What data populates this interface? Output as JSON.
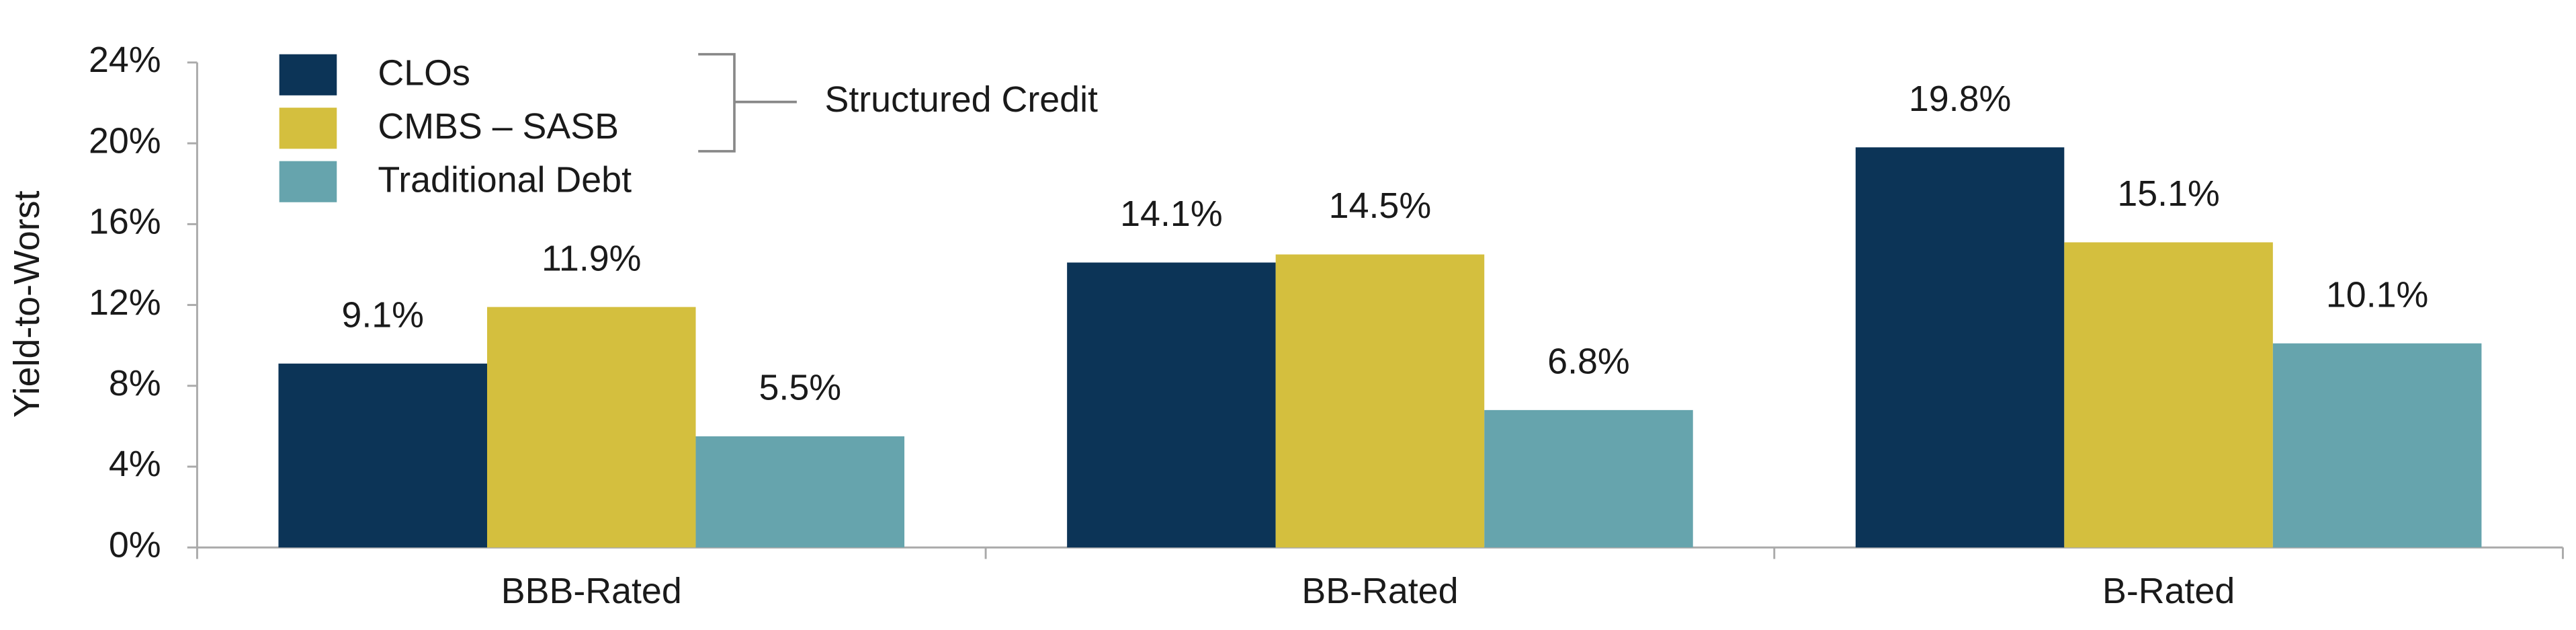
{
  "chart_data": {
    "type": "bar",
    "y_label": "Yield-to-Worst",
    "annotation": "Structured Credit",
    "categories": [
      "BBB-Rated",
      "BB-Rated",
      "B-Rated"
    ],
    "series": [
      {
        "name": "CLOs",
        "color": "#0c3457",
        "values": [
          9.1,
          14.1,
          19.8
        ],
        "value_labels": [
          "9.1%",
          "14.1%",
          "19.8%"
        ]
      },
      {
        "name": "CMBS – SASB",
        "color": "#d4bf3e",
        "values": [
          11.9,
          14.5,
          15.1
        ],
        "value_labels": [
          "11.9%",
          "14.5%",
          "15.1%"
        ]
      },
      {
        "name": "Traditional Debt",
        "color": "#66a4ad",
        "values": [
          5.5,
          6.8,
          10.1
        ],
        "value_labels": [
          "5.5%",
          "6.8%",
          "10.1%"
        ]
      }
    ],
    "ylim": [
      0,
      24
    ],
    "yticks": [
      {
        "value": 0,
        "label": "0%"
      },
      {
        "value": 4,
        "label": "4%"
      },
      {
        "value": 8,
        "label": "8%"
      },
      {
        "value": 12,
        "label": "12%"
      },
      {
        "value": 16,
        "label": "16%"
      },
      {
        "value": 20,
        "label": "20%"
      },
      {
        "value": 24,
        "label": "24%"
      }
    ],
    "grid": false,
    "legend": "top-left"
  }
}
